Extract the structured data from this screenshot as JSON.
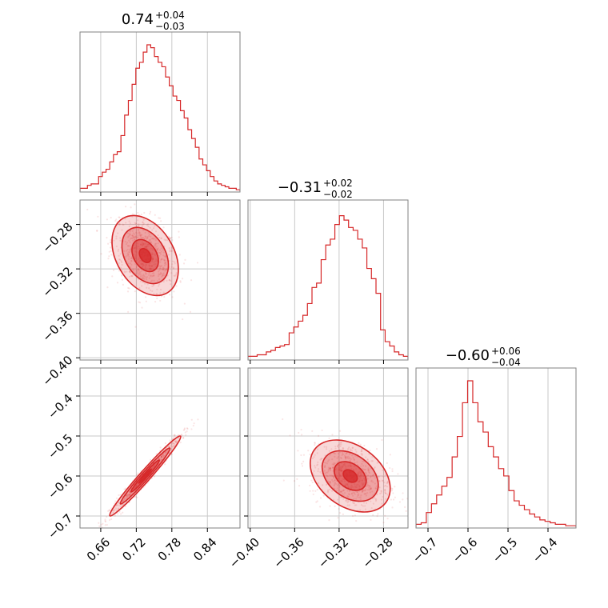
{
  "chart_data": {
    "type": "corner",
    "color": "#d62728",
    "parameters": [
      {
        "title": {
          "median": "0.74",
          "plus": "+0.04",
          "minus": "−0.03"
        },
        "range": [
          0.625,
          0.895
        ],
        "ticks": [
          0.66,
          0.72,
          0.78,
          0.84
        ],
        "tick_labels": [
          "0.66",
          "0.72",
          "0.78",
          "0.84"
        ],
        "hist": [
          0.02,
          0.02,
          0.04,
          0.05,
          0.05,
          0.1,
          0.13,
          0.15,
          0.2,
          0.25,
          0.27,
          0.38,
          0.52,
          0.62,
          0.73,
          0.84,
          0.88,
          0.95,
          1.0,
          0.98,
          0.92,
          0.88,
          0.85,
          0.78,
          0.72,
          0.65,
          0.62,
          0.55,
          0.5,
          0.42,
          0.36,
          0.3,
          0.22,
          0.18,
          0.14,
          0.1,
          0.07,
          0.05,
          0.04,
          0.03,
          0.02,
          0.02,
          0.01
        ]
      },
      {
        "title": {
          "median": "−0.31",
          "plus": "+0.02",
          "minus": "−0.02"
        },
        "range": [
          -0.402,
          -0.258
        ],
        "ticks": [
          -0.4,
          -0.36,
          -0.32,
          -0.28
        ],
        "tick_labels": [
          "−0.40",
          "−0.36",
          "−0.32",
          "−0.28"
        ],
        "hist": [
          0.02,
          0.02,
          0.03,
          0.03,
          0.05,
          0.06,
          0.08,
          0.09,
          0.1,
          0.18,
          0.22,
          0.26,
          0.3,
          0.38,
          0.49,
          0.52,
          0.68,
          0.78,
          0.82,
          0.92,
          0.98,
          0.95,
          0.9,
          0.88,
          0.82,
          0.76,
          0.62,
          0.55,
          0.45,
          0.2,
          0.12,
          0.09,
          0.05,
          0.03,
          0.02
        ]
      },
      {
        "title": {
          "median": "−0.60",
          "plus": "+0.06",
          "minus": "−0.04"
        },
        "range": [
          -0.73,
          -0.33
        ],
        "ticks": [
          -0.7,
          -0.6,
          -0.5,
          -0.4
        ],
        "tick_labels": [
          "−0.7",
          "−0.6",
          "−0.5",
          "−0.4"
        ],
        "hist": [
          0.02,
          0.03,
          0.1,
          0.16,
          0.22,
          0.28,
          0.34,
          0.48,
          0.62,
          0.85,
          1.0,
          0.85,
          0.72,
          0.65,
          0.55,
          0.48,
          0.4,
          0.35,
          0.25,
          0.18,
          0.15,
          0.12,
          0.09,
          0.07,
          0.05,
          0.04,
          0.03,
          0.02,
          0.02,
          0.01,
          0.01
        ]
      }
    ],
    "pairs": [
      {
        "x": 0,
        "y": 1,
        "center": [
          0.735,
          -0.308
        ],
        "spread": [
          0.028,
          0.018
        ],
        "corr": -0.35
      },
      {
        "x": 0,
        "y": 2,
        "center": [
          0.735,
          -0.6
        ],
        "spread": [
          0.03,
          0.05
        ],
        "corr": 0.98
      },
      {
        "x": 1,
        "y": 2,
        "center": [
          -0.31,
          -0.6
        ],
        "spread": [
          0.018,
          0.045
        ],
        "corr": -0.35
      }
    ]
  }
}
